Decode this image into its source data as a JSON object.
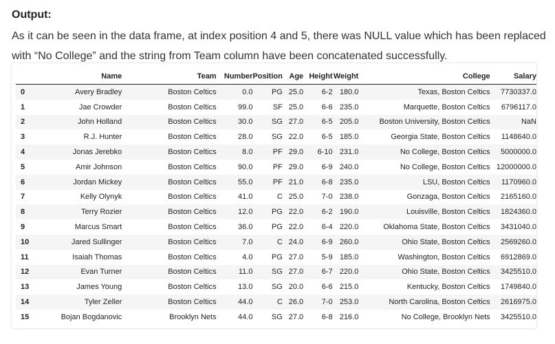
{
  "heading": "Output:",
  "paragraph": "As it can be seen in the data frame, at index position 4 and 5, there was NULL value which has been replaced with “No College” and the string from Team column have been concatenated successfully.",
  "table": {
    "columns": {
      "index": "",
      "name": "Name",
      "team": "Team",
      "number": "Number",
      "position": "Position",
      "age": "Age",
      "height": "Height",
      "weight": "Weight",
      "college": "College",
      "salary": "Salary"
    },
    "rows": [
      {
        "idx": "0",
        "name": "Avery Bradley",
        "team": "Boston Celtics",
        "number": "0.0",
        "position": "PG",
        "age": "25.0",
        "height": "6-2",
        "weight": "180.0",
        "college": "Texas, Boston Celtics",
        "salary": "7730337.0"
      },
      {
        "idx": "1",
        "name": "Jae Crowder",
        "team": "Boston Celtics",
        "number": "99.0",
        "position": "SF",
        "age": "25.0",
        "height": "6-6",
        "weight": "235.0",
        "college": "Marquette, Boston Celtics",
        "salary": "6796117.0"
      },
      {
        "idx": "2",
        "name": "John Holland",
        "team": "Boston Celtics",
        "number": "30.0",
        "position": "SG",
        "age": "27.0",
        "height": "6-5",
        "weight": "205.0",
        "college": "Boston University, Boston Celtics",
        "salary": "NaN"
      },
      {
        "idx": "3",
        "name": "R.J. Hunter",
        "team": "Boston Celtics",
        "number": "28.0",
        "position": "SG",
        "age": "22.0",
        "height": "6-5",
        "weight": "185.0",
        "college": "Georgia State, Boston Celtics",
        "salary": "1148640.0"
      },
      {
        "idx": "4",
        "name": "Jonas Jerebko",
        "team": "Boston Celtics",
        "number": "8.0",
        "position": "PF",
        "age": "29.0",
        "height": "6-10",
        "weight": "231.0",
        "college": "No College, Boston Celtics",
        "salary": "5000000.0"
      },
      {
        "idx": "5",
        "name": "Amir Johnson",
        "team": "Boston Celtics",
        "number": "90.0",
        "position": "PF",
        "age": "29.0",
        "height": "6-9",
        "weight": "240.0",
        "college": "No College, Boston Celtics",
        "salary": "12000000.0"
      },
      {
        "idx": "6",
        "name": "Jordan Mickey",
        "team": "Boston Celtics",
        "number": "55.0",
        "position": "PF",
        "age": "21.0",
        "height": "6-8",
        "weight": "235.0",
        "college": "LSU, Boston Celtics",
        "salary": "1170960.0"
      },
      {
        "idx": "7",
        "name": "Kelly Olynyk",
        "team": "Boston Celtics",
        "number": "41.0",
        "position": "C",
        "age": "25.0",
        "height": "7-0",
        "weight": "238.0",
        "college": "Gonzaga, Boston Celtics",
        "salary": "2165160.0"
      },
      {
        "idx": "8",
        "name": "Terry Rozier",
        "team": "Boston Celtics",
        "number": "12.0",
        "position": "PG",
        "age": "22.0",
        "height": "6-2",
        "weight": "190.0",
        "college": "Louisville, Boston Celtics",
        "salary": "1824360.0"
      },
      {
        "idx": "9",
        "name": "Marcus Smart",
        "team": "Boston Celtics",
        "number": "36.0",
        "position": "PG",
        "age": "22.0",
        "height": "6-4",
        "weight": "220.0",
        "college": "Oklahoma State, Boston Celtics",
        "salary": "3431040.0"
      },
      {
        "idx": "10",
        "name": "Jared Sullinger",
        "team": "Boston Celtics",
        "number": "7.0",
        "position": "C",
        "age": "24.0",
        "height": "6-9",
        "weight": "260.0",
        "college": "Ohio State, Boston Celtics",
        "salary": "2569260.0"
      },
      {
        "idx": "11",
        "name": "Isaiah Thomas",
        "team": "Boston Celtics",
        "number": "4.0",
        "position": "PG",
        "age": "27.0",
        "height": "5-9",
        "weight": "185.0",
        "college": "Washington, Boston Celtics",
        "salary": "6912869.0"
      },
      {
        "idx": "12",
        "name": "Evan Turner",
        "team": "Boston Celtics",
        "number": "11.0",
        "position": "SG",
        "age": "27.0",
        "height": "6-7",
        "weight": "220.0",
        "college": "Ohio State, Boston Celtics",
        "salary": "3425510.0"
      },
      {
        "idx": "13",
        "name": "James Young",
        "team": "Boston Celtics",
        "number": "13.0",
        "position": "SG",
        "age": "20.0",
        "height": "6-6",
        "weight": "215.0",
        "college": "Kentucky, Boston Celtics",
        "salary": "1749840.0"
      },
      {
        "idx": "14",
        "name": "Tyler Zeller",
        "team": "Boston Celtics",
        "number": "44.0",
        "position": "C",
        "age": "26.0",
        "height": "7-0",
        "weight": "253.0",
        "college": "North Carolina, Boston Celtics",
        "salary": "2616975.0"
      },
      {
        "idx": "15",
        "name": "Bojan Bogdanovic",
        "team": "Brooklyn Nets",
        "number": "44.0",
        "position": "SG",
        "age": "27.0",
        "height": "6-8",
        "weight": "216.0",
        "college": "No College, Brooklyn Nets",
        "salary": "3425510.0"
      }
    ]
  }
}
